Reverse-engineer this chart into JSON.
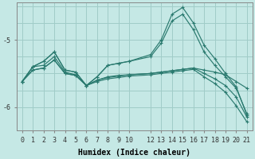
{
  "bg_color": "#c5e8e5",
  "grid_color": "#a0ccc8",
  "line_color": "#2a7a6f",
  "xlabel": "Humidex (Indice chaleur)",
  "xlabel_fontsize": 7,
  "tick_fontsize": 6,
  "ylim": [
    -6.35,
    -4.45
  ],
  "xlim": [
    -0.5,
    21.5
  ],
  "yticks": [
    -6,
    -5
  ],
  "xticks": [
    0,
    1,
    2,
    3,
    4,
    5,
    6,
    7,
    8,
    9,
    10,
    12,
    13,
    14,
    15,
    16,
    17,
    18,
    19,
    20,
    21
  ],
  "series": [
    {
      "x": [
        0,
        1,
        2,
        3,
        4,
        5,
        6,
        7,
        8,
        9,
        10,
        12,
        13,
        14,
        15,
        16,
        17,
        18,
        19,
        20,
        21
      ],
      "y": [
        -5.62,
        -5.4,
        -5.32,
        -5.18,
        -5.45,
        -5.48,
        -5.68,
        -5.55,
        -5.38,
        -5.35,
        -5.32,
        -5.22,
        -5.0,
        -4.62,
        -4.52,
        -4.75,
        -5.08,
        -5.28,
        -5.5,
        -5.7,
        -6.12
      ]
    },
    {
      "x": [
        0,
        1,
        2,
        3,
        4,
        5,
        6,
        7,
        8,
        9,
        10,
        12,
        13,
        14,
        15,
        16,
        17,
        18,
        19,
        20,
        21
      ],
      "y": [
        -5.62,
        -5.4,
        -5.32,
        -5.18,
        -5.45,
        -5.48,
        -5.68,
        -5.55,
        -5.38,
        -5.35,
        -5.32,
        -5.25,
        -5.05,
        -4.72,
        -4.62,
        -4.85,
        -5.18,
        -5.38,
        -5.55,
        -5.72,
        -6.1
      ]
    },
    {
      "x": [
        0,
        1,
        2,
        3,
        4,
        5,
        6,
        7,
        8,
        9,
        10,
        12,
        13,
        14,
        15,
        16,
        17,
        18,
        19,
        20,
        21
      ],
      "y": [
        -5.62,
        -5.4,
        -5.38,
        -5.25,
        -5.48,
        -5.52,
        -5.68,
        -5.6,
        -5.55,
        -5.53,
        -5.52,
        -5.5,
        -5.48,
        -5.46,
        -5.44,
        -5.42,
        -5.45,
        -5.48,
        -5.52,
        -5.62,
        -5.72
      ]
    },
    {
      "x": [
        0,
        1,
        2,
        3,
        4,
        5,
        6,
        7,
        8,
        9,
        10,
        12,
        13,
        14,
        15,
        16,
        17,
        18,
        19,
        20,
        21
      ],
      "y": [
        -5.62,
        -5.45,
        -5.42,
        -5.3,
        -5.5,
        -5.53,
        -5.68,
        -5.6,
        -5.56,
        -5.54,
        -5.52,
        -5.5,
        -5.48,
        -5.46,
        -5.44,
        -5.42,
        -5.5,
        -5.58,
        -5.68,
        -5.85,
        -6.15
      ]
    },
    {
      "x": [
        0,
        1,
        2,
        3,
        4,
        5,
        6,
        7,
        8,
        9,
        10,
        12,
        13,
        14,
        15,
        16,
        17,
        18,
        19,
        20,
        21
      ],
      "y": [
        -5.62,
        -5.45,
        -5.42,
        -5.3,
        -5.5,
        -5.53,
        -5.68,
        -5.62,
        -5.58,
        -5.56,
        -5.54,
        -5.52,
        -5.5,
        -5.48,
        -5.46,
        -5.44,
        -5.55,
        -5.65,
        -5.78,
        -5.98,
        -6.22
      ]
    }
  ]
}
